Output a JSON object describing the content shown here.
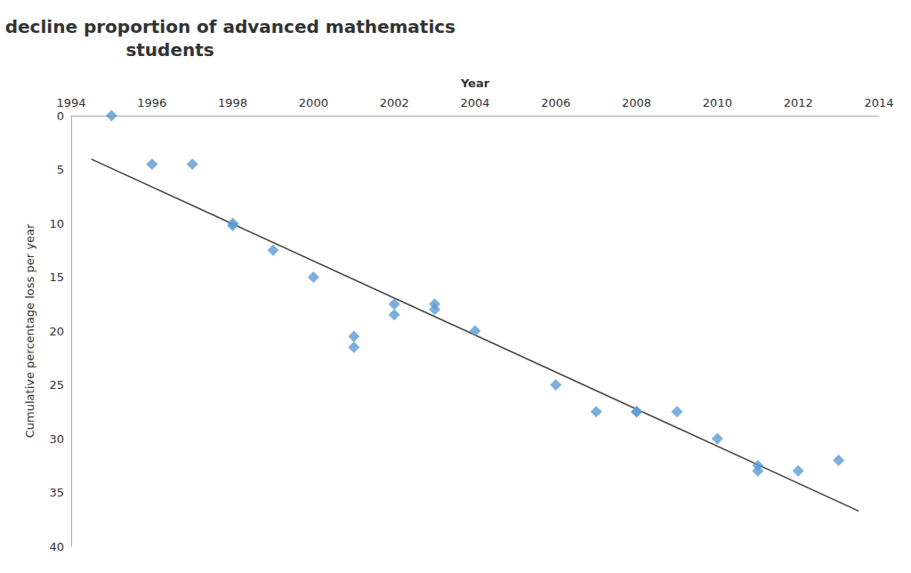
{
  "chart_data": {
    "type": "scatter",
    "title": "Percentage decline proportion of advanced mathematics\nstudents",
    "xlabel": "Year",
    "ylabel": "Cumulative percentage loss per year",
    "series": [
      {
        "type": "line",
        "color": "#404040",
        "line_style": "solid",
        "x": [
          1994.5,
          2013.5
        ],
        "values": [
          4.0397,
          36.722
        ]
      },
      {
        "type": "scatter",
        "color": "#5b9bd5",
        "marker": "diamond",
        "x": [
          1995,
          1996,
          1997,
          1998,
          1998,
          1999,
          2000,
          2001,
          2001,
          2002,
          2002,
          2003,
          2003,
          2004,
          2006,
          2007,
          2008,
          2008,
          2009,
          2010,
          2011,
          2011,
          2012,
          2013
        ],
        "values": [
          0,
          4.5,
          4.5,
          10,
          10.2,
          12.5,
          15,
          20.5,
          21.5,
          17.5,
          18.5,
          17.5,
          18,
          20,
          25,
          27.5,
          27.5,
          27.5,
          27.5,
          30,
          32.5,
          33,
          33,
          32
        ]
      }
    ],
    "xlim": [
      1994,
      2014
    ],
    "ylim": [
      40,
      0
    ],
    "xticks": [
      1994,
      1996,
      1998,
      2000,
      2002,
      2004,
      2006,
      2008,
      2010,
      2012,
      2014
    ],
    "yticks": [
      0,
      5,
      10,
      15,
      20,
      25,
      30,
      35,
      40
    ],
    "grid": false
  }
}
